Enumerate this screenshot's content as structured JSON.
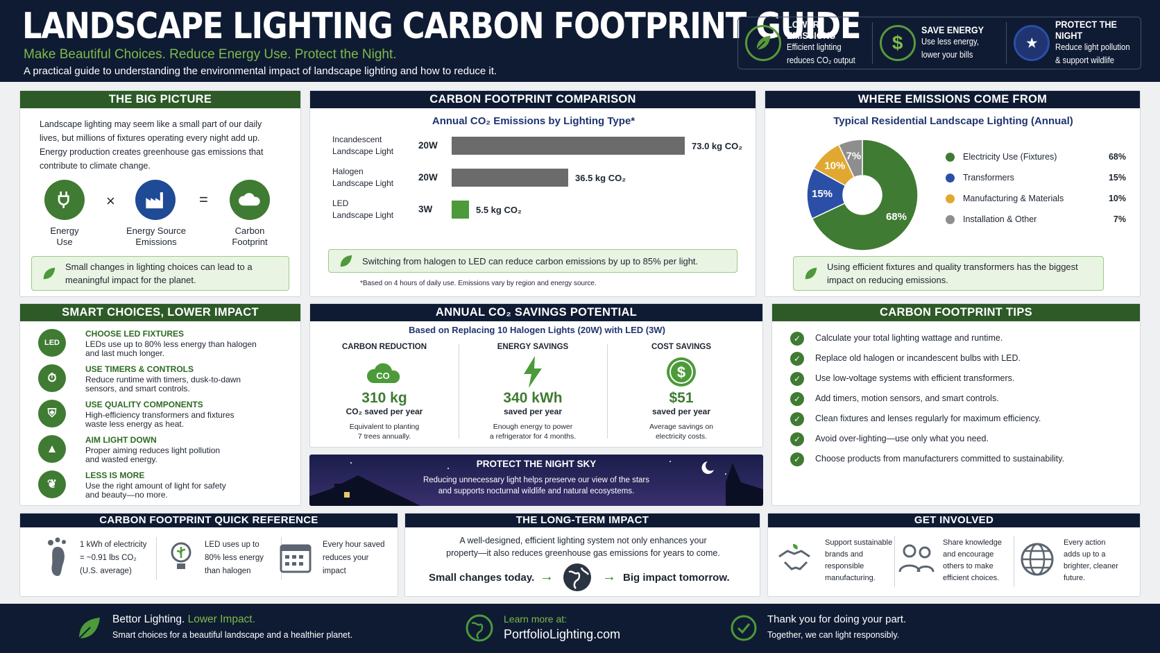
{
  "header": {
    "title": "LANDSCAPE LIGHTING CARBON FOOTPRINT GUIDE",
    "subtitle": "Make Beautiful Choices. Reduce Energy Use. Protect the Night.",
    "description": "A practical guide to understanding the environmental impact of landscape lighting and how to reduce it.",
    "badges": [
      {
        "icon": "leaf-icon",
        "title": "LOWER EMISSIONS",
        "line1": "Efficient lighting",
        "line2": "reduces CO₂ output"
      },
      {
        "icon": "dollar-icon",
        "title": "SAVE ENERGY",
        "line1": "Use less energy,",
        "line2": "lower your bills"
      },
      {
        "icon": "night-sky-icon",
        "title": "PROTECT THE NIGHT",
        "line1": "Reduce light pollution",
        "line2": "& support wildlife"
      }
    ]
  },
  "big_picture": {
    "title": "THE BIG PICTURE",
    "text": "Landscape lighting may seem like a small part of our daily lives, but millions of fixtures operating every night add up. Energy production creates greenhouse gas emissions that contribute to climate change.",
    "eq": [
      {
        "l1": "Energy",
        "l2": "Use"
      },
      {
        "l1": "Energy Source",
        "l2": "Emissions"
      },
      {
        "l1": "Carbon",
        "l2": "Footprint"
      }
    ],
    "times": "×",
    "equals": "=",
    "note": "Small changes in lighting choices can lead to a meaningful impact for the planet."
  },
  "comparison": {
    "title": "CARBON FOOTPRINT COMPARISON",
    "subtitle": "Annual CO₂ Emissions by Lighting Type*",
    "note": "Switching from halogen to LED can reduce carbon emissions by up to 85% per light.",
    "footnote": "*Based on 4 hours of daily use. Emissions vary by region and energy source."
  },
  "chart_data": [
    {
      "type": "bar",
      "title": "Annual CO₂ Emissions by Lighting Type*",
      "categories": [
        "Incandescent Landscape Light",
        "Halogen Landscape Light",
        "LED Landscape Light"
      ],
      "watts": [
        "20W",
        "20W",
        "3W"
      ],
      "values": [
        73.0,
        36.5,
        5.5
      ],
      "value_labels": [
        "73.0 kg CO₂",
        "36.5 kg CO₂",
        "5.5 kg CO₂"
      ],
      "unit": "kg CO₂",
      "colors": [
        "#6b6b6b",
        "#6b6b6b",
        "#4c9a3a"
      ]
    },
    {
      "type": "pie",
      "title": "Typical Residential Landscape Lighting (Annual)",
      "categories": [
        "Electricity Use (Fixtures)",
        "Transformers",
        "Manufacturing & Materials",
        "Installation & Other"
      ],
      "values": [
        68,
        15,
        10,
        7
      ],
      "labels": [
        "68%",
        "15%",
        "10%",
        "7%"
      ],
      "colors": [
        "#3f7b32",
        "#2b4fa6",
        "#e0a830",
        "#8e8e8e"
      ]
    }
  ],
  "emissions": {
    "title": "WHERE EMISSIONS COME FROM",
    "note": "Using efficient fixtures and quality transformers has the biggest impact on reducing emissions."
  },
  "smart": {
    "title": "SMART CHOICES, LOWER IMPACT",
    "items": [
      {
        "icon": "led-icon",
        "glyph": "LED",
        "title": "CHOOSE LED FIXTURES",
        "l1": "LEDs use up to 80% less energy than halogen",
        "l2": "and last much longer."
      },
      {
        "icon": "timer-icon",
        "glyph": "⏱",
        "title": "USE TIMERS & CONTROLS",
        "l1": "Reduce runtime with timers, dusk-to-dawn",
        "l2": "sensors, and smart controls."
      },
      {
        "icon": "shield-icon",
        "glyph": "⛨",
        "title": "USE QUALITY COMPONENTS",
        "l1": "High-efficiency transformers and fixtures",
        "l2": "waste less energy as heat."
      },
      {
        "icon": "lamp-down-icon",
        "glyph": "▲",
        "title": "AIM LIGHT DOWN",
        "l1": "Proper aiming reduces light pollution",
        "l2": "and wasted energy."
      },
      {
        "icon": "leaf-icon",
        "glyph": "❦",
        "title": "LESS IS MORE",
        "l1": "Use the right amount of light for safety",
        "l2": "and beauty—no more."
      }
    ]
  },
  "savings": {
    "title": "ANNUAL CO₂ SAVINGS POTENTIAL",
    "subtitle": "Based on Replacing 10 Halogen Lights (20W) with LED (3W)",
    "cols": [
      {
        "head": "CARBON REDUCTION",
        "value": "310 kg",
        "label": "CO₂ saved per year",
        "d1": "Equivalent to planting",
        "d2": "7 trees annually."
      },
      {
        "head": "ENERGY SAVINGS",
        "value": "340 kWh",
        "label": "saved per year",
        "d1": "Enough energy to power",
        "d2": "a refrigerator for 4 months."
      },
      {
        "head": "COST SAVINGS",
        "value": "$51",
        "label": "saved per year",
        "d1": "Average savings on",
        "d2": "electricity costs."
      }
    ]
  },
  "night": {
    "title": "PROTECT THE NIGHT SKY",
    "l1": "Reducing unnecessary light helps preserve our view of the stars",
    "l2": "and supports nocturnal wildlife and natural ecosystems."
  },
  "tips": {
    "title": "CARBON FOOTPRINT TIPS",
    "items": [
      "Calculate your total lighting wattage and runtime.",
      "Replace old halogen or incandescent bulbs with LED.",
      "Use low-voltage systems with efficient transformers.",
      "Add timers, motion sensors, and smart controls.",
      "Clean fixtures and lenses regularly for maximum efficiency.",
      "Avoid over-lighting—use only what you need.",
      "Choose products from manufacturers committed to sustainability."
    ]
  },
  "quickref": {
    "title": "CARBON FOOTPRINT QUICK REFERENCE",
    "items": [
      {
        "icon": "footprint-icon",
        "l1": "1 kWh of electricity",
        "l2": "= ~0.91 lbs CO₂",
        "l3": "(U.S. average)"
      },
      {
        "icon": "bulb-icon",
        "l1": "LED uses up to",
        "l2": "80% less energy",
        "l3": "than halogen"
      },
      {
        "icon": "calendar-icon",
        "l1": "Every hour saved",
        "l2": "reduces your",
        "l3": "impact"
      }
    ]
  },
  "longterm": {
    "title": "THE LONG-TERM IMPACT",
    "l1": "A well-designed, efficient lighting system not only enhances your",
    "l2": "property—it also reduces greenhouse gas emissions for years to come.",
    "left": "Small changes today.",
    "right": "Big impact tomorrow.",
    "arrow": "→"
  },
  "involved": {
    "title": "GET INVOLVED",
    "items": [
      {
        "icon": "handshake-icon",
        "lines": [
          "Support sustainable",
          "brands and",
          "responsible",
          "manufacturing."
        ]
      },
      {
        "icon": "people-icon",
        "lines": [
          "Share knowledge",
          "and encourage",
          "others to make",
          "efficient choices."
        ]
      },
      {
        "icon": "globe-icon",
        "lines": [
          "Every action",
          "adds up to a",
          "brighter, cleaner",
          "future."
        ]
      }
    ]
  },
  "footer": {
    "a1": "Bettor Lighting.",
    "a2": "Lower Impact.",
    "a3": "Smart choices for a beautiful landscape and a healthier planet.",
    "b1": "Learn more at:",
    "b2": "PortfolioLighting.com",
    "c1": "Thank you for doing your part.",
    "c2": "Together, we can light responsibly."
  }
}
